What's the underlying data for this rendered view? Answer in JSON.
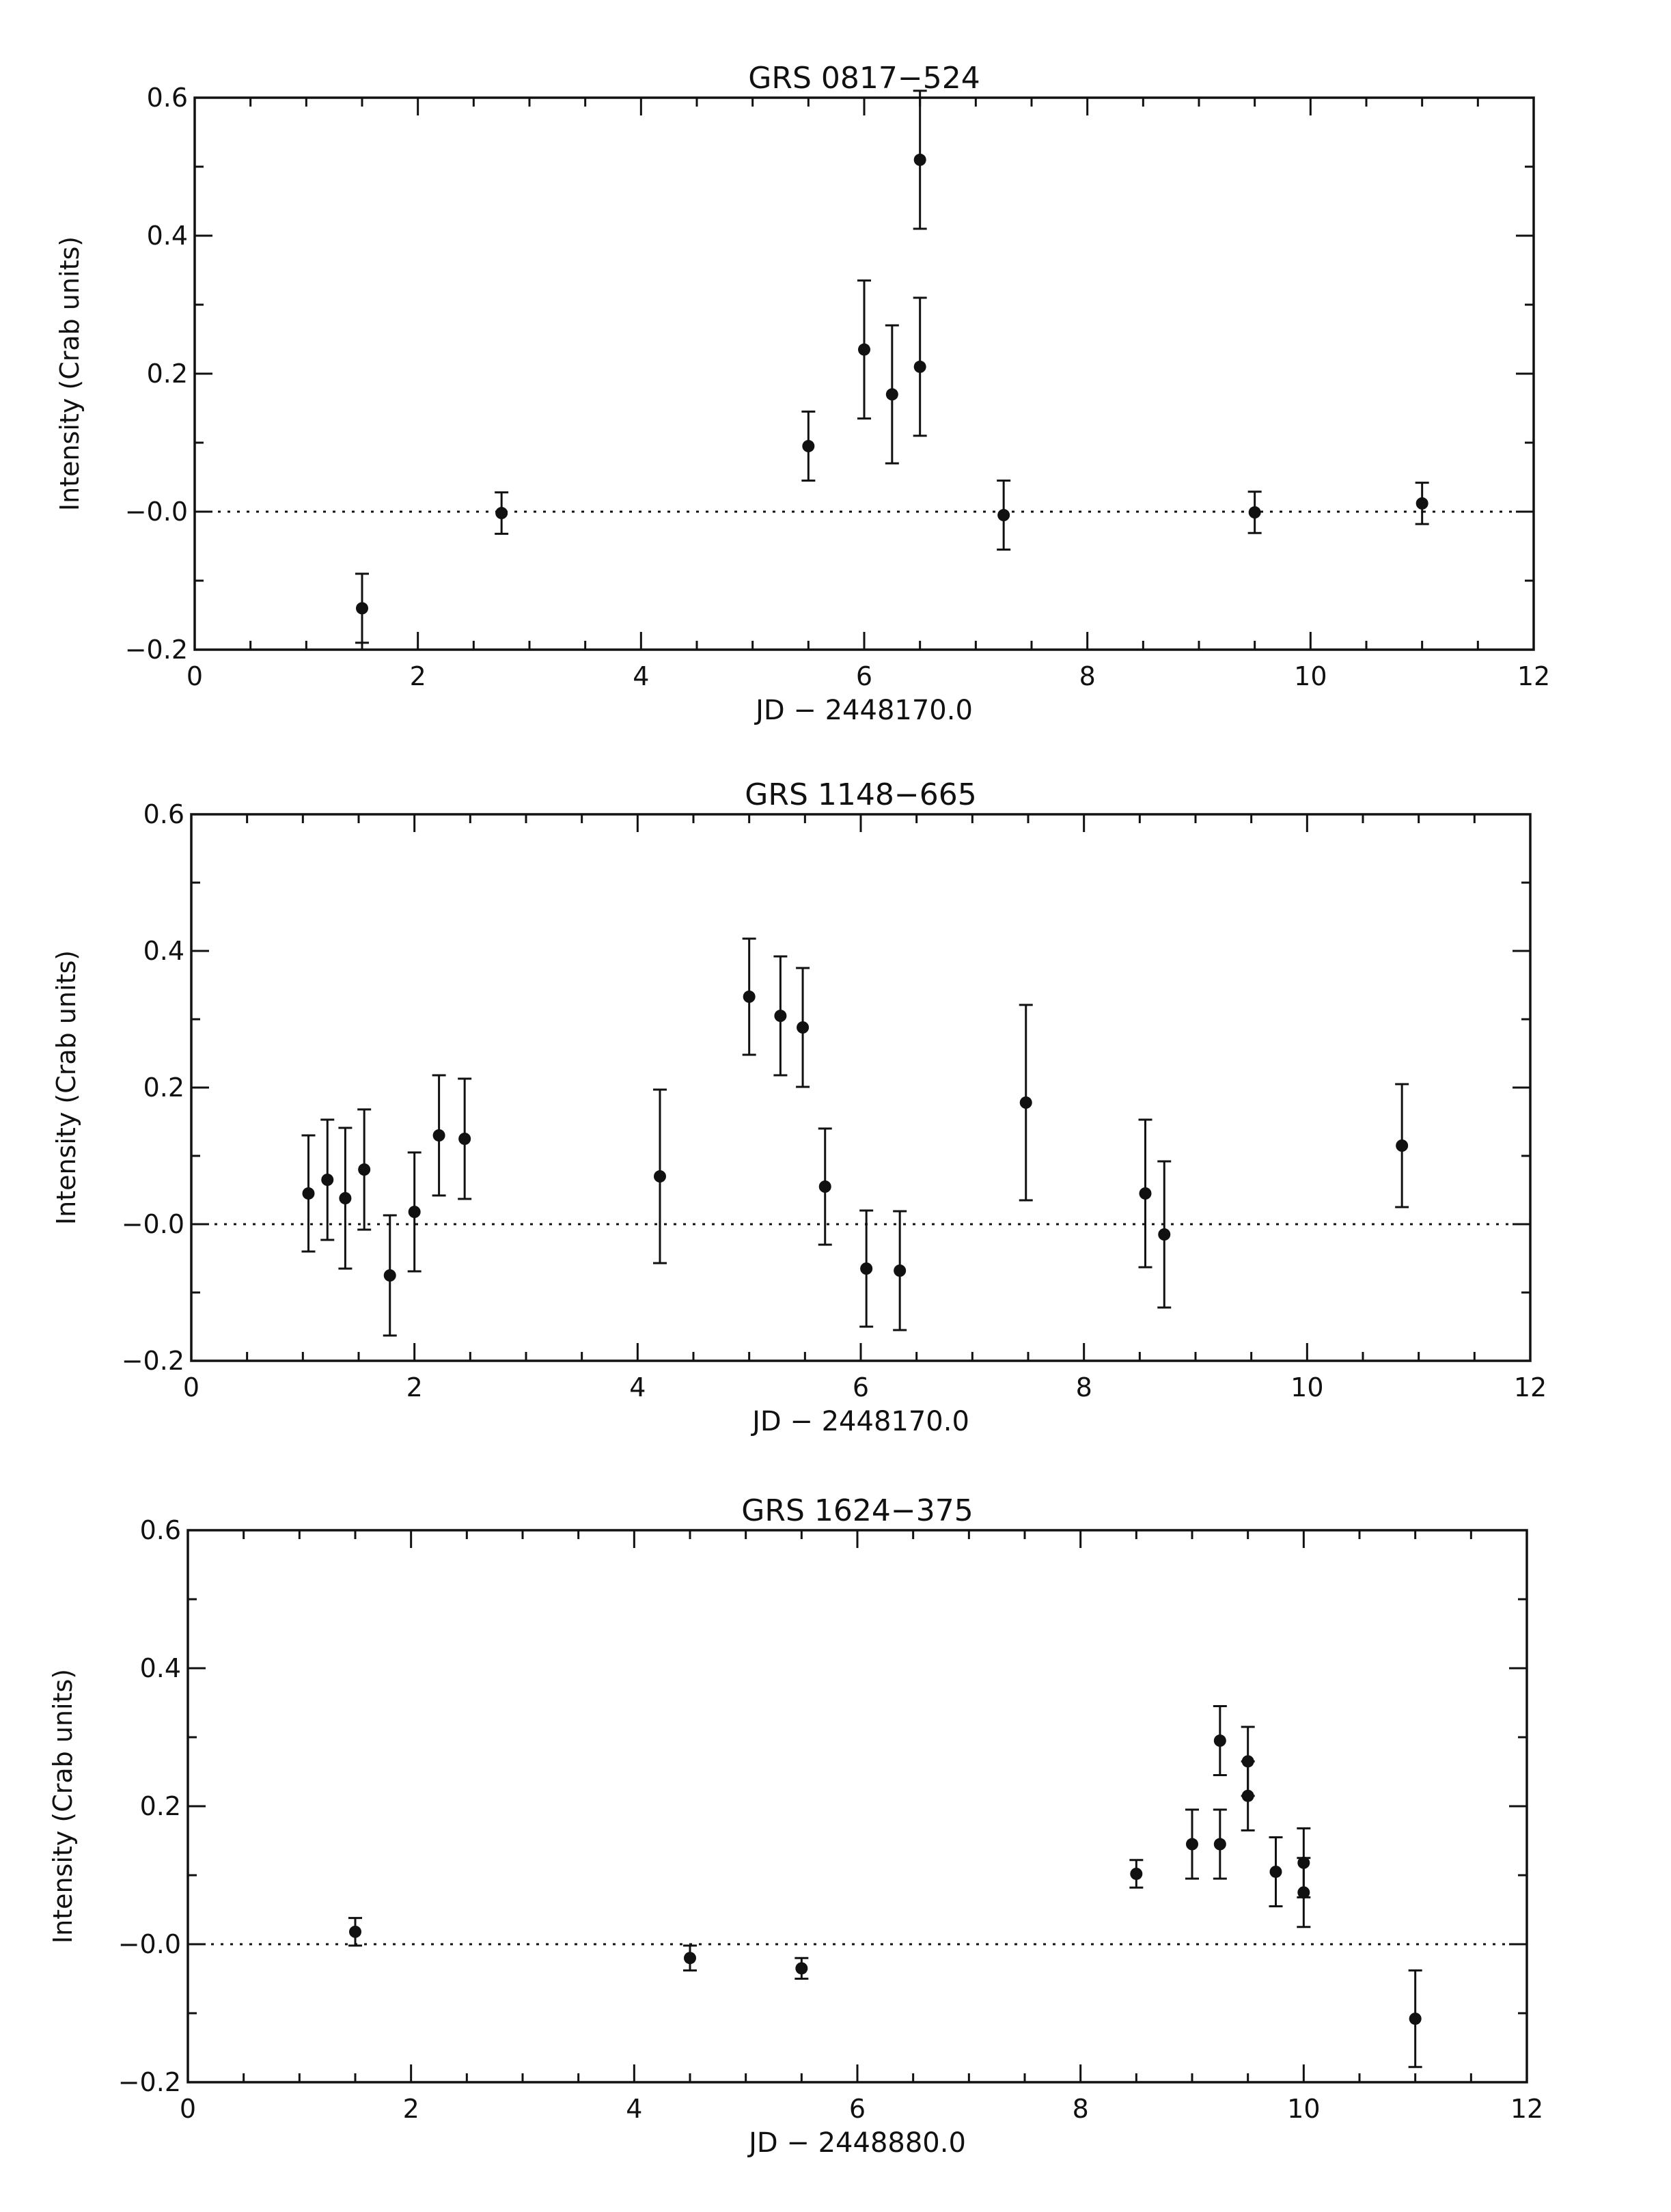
{
  "chart_data": [
    {
      "type": "scatter",
      "title": "GRS 0817−524",
      "xlabel": "JD − 2448170.0",
      "ylabel": "Intensity (Crab units)",
      "xlim": [
        0,
        12
      ],
      "ylim": [
        -0.2,
        0.6
      ],
      "xticks": [
        "0",
        "2",
        "4",
        "6",
        "8",
        "10",
        "12"
      ],
      "yticks": [
        "−0.2",
        "−0.0",
        "0.2",
        "0.4",
        "0.6"
      ],
      "reference_line": 0,
      "error_bars": true,
      "points": [
        {
          "x": 1.5,
          "y": -0.14,
          "err": 0.05
        },
        {
          "x": 2.75,
          "y": -0.002,
          "err": 0.03
        },
        {
          "x": 5.5,
          "y": 0.095,
          "err": 0.05
        },
        {
          "x": 6.0,
          "y": 0.235,
          "err": 0.1
        },
        {
          "x": 6.25,
          "y": 0.17,
          "err": 0.1
        },
        {
          "x": 6.5,
          "y": 0.21,
          "err": 0.1
        },
        {
          "x": 6.5,
          "y": 0.51,
          "err": 0.1
        },
        {
          "x": 7.25,
          "y": -0.005,
          "err": 0.05
        },
        {
          "x": 9.5,
          "y": -0.001,
          "err": 0.03
        },
        {
          "x": 11.0,
          "y": 0.012,
          "err": 0.03
        }
      ]
    },
    {
      "type": "scatter",
      "title": "GRS 1148−665",
      "xlabel": "JD − 2448170.0",
      "ylabel": "Intensity (Crab units)",
      "xlim": [
        0,
        12
      ],
      "ylim": [
        -0.2,
        0.6
      ],
      "xticks": [
        "0",
        "2",
        "4",
        "6",
        "8",
        "10",
        "12"
      ],
      "yticks": [
        "−0.2",
        "−0.0",
        "0.2",
        "0.4",
        "0.6"
      ],
      "reference_line": 0,
      "error_bars": true,
      "points": [
        {
          "x": 1.05,
          "y": 0.045,
          "err": 0.085
        },
        {
          "x": 1.22,
          "y": 0.065,
          "err": 0.088
        },
        {
          "x": 1.38,
          "y": 0.038,
          "err": 0.103
        },
        {
          "x": 1.55,
          "y": 0.08,
          "err": 0.088
        },
        {
          "x": 1.78,
          "y": -0.075,
          "err": 0.088
        },
        {
          "x": 2.0,
          "y": 0.018,
          "err": 0.087
        },
        {
          "x": 2.22,
          "y": 0.13,
          "err": 0.088
        },
        {
          "x": 2.45,
          "y": 0.125,
          "err": 0.088
        },
        {
          "x": 4.2,
          "y": 0.07,
          "err": 0.127
        },
        {
          "x": 5.0,
          "y": 0.333,
          "err": 0.085
        },
        {
          "x": 5.28,
          "y": 0.305,
          "err": 0.087
        },
        {
          "x": 5.48,
          "y": 0.288,
          "err": 0.087
        },
        {
          "x": 5.68,
          "y": 0.055,
          "err": 0.085
        },
        {
          "x": 6.05,
          "y": -0.065,
          "err": 0.085
        },
        {
          "x": 6.35,
          "y": -0.068,
          "err": 0.087
        },
        {
          "x": 7.48,
          "y": 0.178,
          "err": 0.143
        },
        {
          "x": 8.55,
          "y": 0.045,
          "err": 0.108
        },
        {
          "x": 8.72,
          "y": -0.015,
          "err": 0.107
        },
        {
          "x": 10.85,
          "y": 0.115,
          "err": 0.09
        }
      ]
    },
    {
      "type": "scatter",
      "title": "GRS 1624−375",
      "xlabel": "JD − 2448880.0",
      "ylabel": "Intensity (Crab units)",
      "xlim": [
        0,
        12
      ],
      "ylim": [
        -0.2,
        0.6
      ],
      "xticks": [
        "0",
        "2",
        "4",
        "6",
        "8",
        "10",
        "12"
      ],
      "yticks": [
        "−0.2",
        "−0.0",
        "0.2",
        "0.4",
        "0.6"
      ],
      "reference_line": 0,
      "error_bars": true,
      "points": [
        {
          "x": 1.5,
          "y": 0.018,
          "err": 0.02
        },
        {
          "x": 4.5,
          "y": -0.02,
          "err": 0.018
        },
        {
          "x": 5.5,
          "y": -0.035,
          "err": 0.015
        },
        {
          "x": 8.5,
          "y": 0.102,
          "err": 0.02
        },
        {
          "x": 9.0,
          "y": 0.145,
          "err": 0.05
        },
        {
          "x": 9.25,
          "y": 0.145,
          "err": 0.05
        },
        {
          "x": 9.25,
          "y": 0.295,
          "err": 0.05
        },
        {
          "x": 9.5,
          "y": 0.265,
          "err": 0.05
        },
        {
          "x": 9.5,
          "y": 0.215,
          "err": 0.05
        },
        {
          "x": 9.75,
          "y": 0.105,
          "err": 0.05
        },
        {
          "x": 10.0,
          "y": 0.118,
          "err": 0.05
        },
        {
          "x": 10.0,
          "y": 0.075,
          "err": 0.05
        },
        {
          "x": 11.0,
          "y": -0.108,
          "err": 0.07
        }
      ]
    }
  ]
}
